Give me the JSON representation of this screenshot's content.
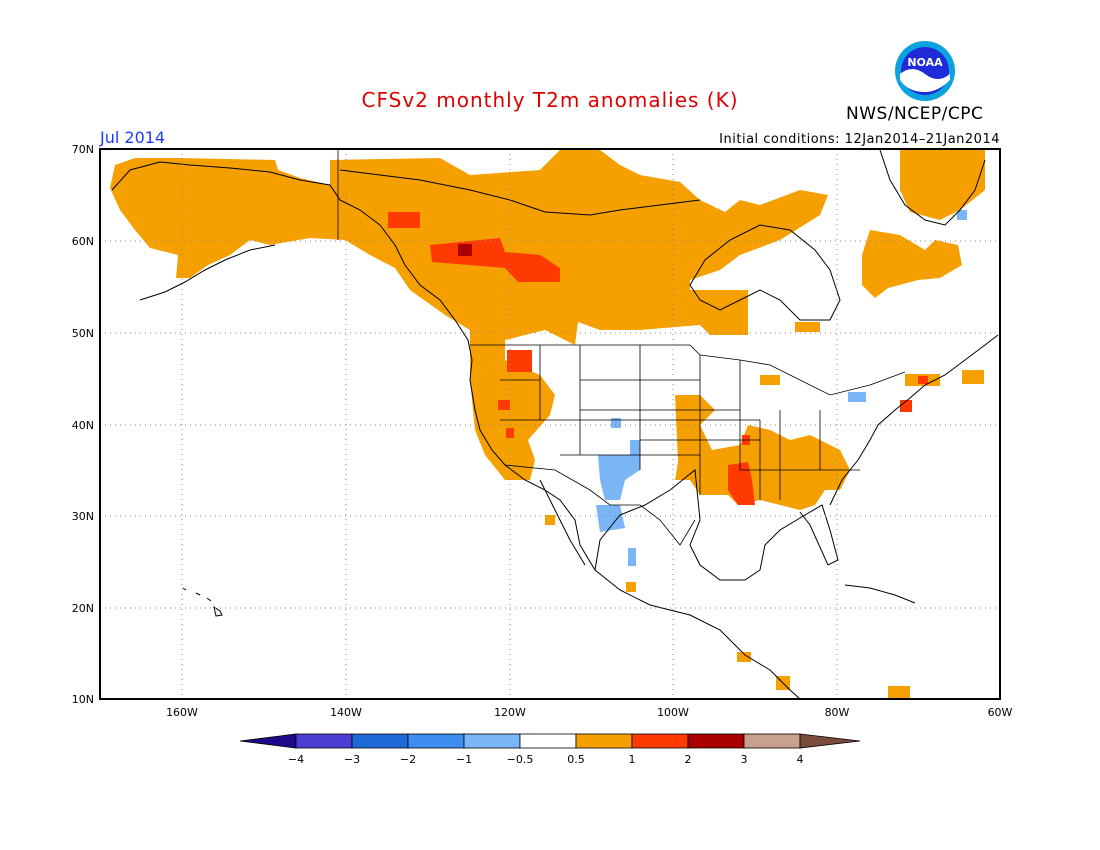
{
  "title": "CFSv2 monthly T2m anomalies (K)",
  "period": "Jul 2014",
  "initial_conditions": "Initial conditions: 12Jan2014–21Jan2014",
  "agency": "NWS/NCEP/CPC",
  "logo_text": "NOAA",
  "map": {
    "lat_labels": [
      "70N",
      "60N",
      "50N",
      "40N",
      "30N",
      "20N",
      "10N"
    ],
    "lon_labels": [
      "160W",
      "140W",
      "120W",
      "100W",
      "80W",
      "60W"
    ],
    "extent": {
      "lon": [
        -172,
        -60
      ],
      "lat": [
        10,
        70
      ]
    }
  },
  "colorbar": {
    "labels": [
      "−4",
      "−3",
      "−2",
      "−1",
      "−0.5",
      "0.5",
      "1",
      "2",
      "3",
      "4"
    ],
    "colors": [
      "#1c0a8a",
      "#4a3fd0",
      "#1f6ad8",
      "#3d8ef0",
      "#7ab6f5",
      "#ffffff",
      "#f6a000",
      "#ff3a00",
      "#a80000",
      "#c9a08e",
      "#7a4a3a"
    ]
  }
}
